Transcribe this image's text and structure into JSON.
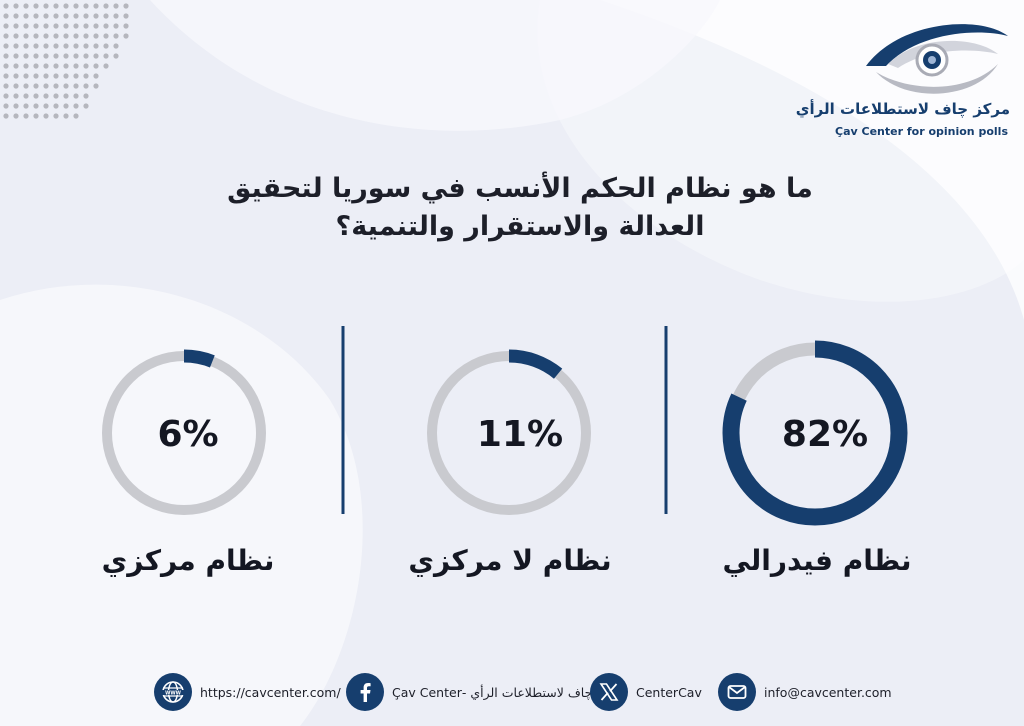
{
  "brand": {
    "name_ar": "مركز چاف لاستطلاعات الرأي",
    "name_en": "Çav Center for opinion polls",
    "colors": {
      "navy": "#163e6e",
      "track": "#c9cacf",
      "text": "#141722"
    }
  },
  "question": "ما هو نظام الحكم الأنسب في سوريا لتحقيق العدالة والاستقرار والتنمية؟",
  "chart_data": {
    "type": "donut",
    "unit": "%",
    "categories": [
      "نظام فيدرالي",
      "نظام لا مركزي",
      "نظام مركزي"
    ],
    "values": [
      82,
      11,
      6
    ],
    "labels": [
      "82%",
      "11%",
      "6%"
    ]
  },
  "footer": {
    "email": "info@cavcenter.com",
    "x_handle": "CenterCav",
    "facebook": "مركز چاف لاستطلاعات الرأي -Çav Center",
    "website": "https://cavcenter.com/",
    "icons": [
      "email-icon",
      "x-icon",
      "facebook-icon",
      "globe-icon"
    ]
  }
}
